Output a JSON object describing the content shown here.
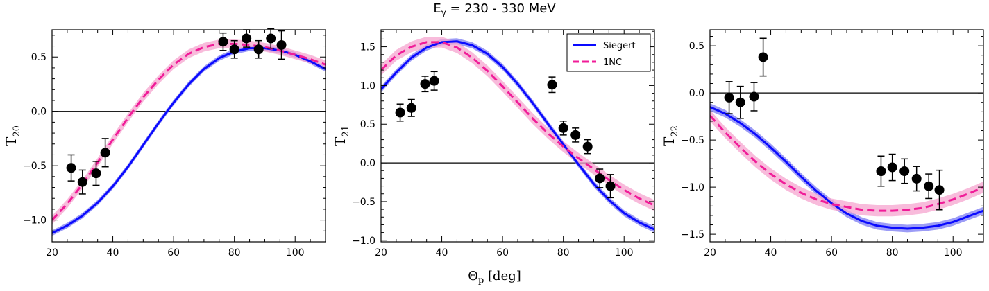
{
  "figure": {
    "suptitle_main": "E",
    "suptitle_sub": "γ",
    "suptitle_rest": " = 230 - 330 MeV",
    "xlabel_main": "Θ",
    "xlabel_sub": "p",
    "xlabel_rest": " [deg]"
  },
  "colors": {
    "siegert": "#0a0aff",
    "siegert_band": "#7b7bf3",
    "onenc": "#f01c98",
    "onenc_band": "#f6a4cf",
    "data": "#000000"
  },
  "chart_data": [
    {
      "type": "line",
      "ylabel_main": "T",
      "ylabel_sub": "20",
      "xlim": [
        20,
        110
      ],
      "ylim": [
        -1.2,
        0.75
      ],
      "xticks": [
        20,
        40,
        60,
        80,
        100
      ],
      "yticks": [
        -1.0,
        -0.5,
        0.0,
        0.5
      ],
      "xtick_labels": [
        "20",
        "40",
        "60",
        "80",
        "100"
      ],
      "ytick_labels": [
        "−1.0",
        "−0.5",
        "0.0",
        "0.5"
      ],
      "hline": 0,
      "grid": false,
      "series": [
        {
          "name": "Siegert",
          "style": "solid",
          "band": 0.025,
          "x": [
            20,
            25,
            30,
            35,
            40,
            45,
            50,
            55,
            60,
            65,
            70,
            75,
            80,
            85,
            90,
            95,
            100,
            105,
            110
          ],
          "y": [
            -1.12,
            -1.05,
            -0.96,
            -0.84,
            -0.69,
            -0.51,
            -0.31,
            -0.11,
            0.08,
            0.25,
            0.39,
            0.49,
            0.55,
            0.58,
            0.58,
            0.56,
            0.52,
            0.46,
            0.39
          ]
        },
        {
          "name": "1NC",
          "style": "dashed",
          "band": 0.04,
          "x": [
            20,
            25,
            30,
            35,
            40,
            45,
            50,
            55,
            60,
            65,
            70,
            75,
            80,
            85,
            90,
            95,
            100,
            105,
            110
          ],
          "y": [
            -1.0,
            -0.85,
            -0.67,
            -0.47,
            -0.26,
            -0.06,
            0.13,
            0.29,
            0.43,
            0.53,
            0.59,
            0.62,
            0.62,
            0.61,
            0.59,
            0.56,
            0.52,
            0.48,
            0.43
          ]
        }
      ],
      "points": {
        "x": [
          26.3,
          30,
          34.5,
          37.5,
          76.3,
          80,
          84,
          88,
          92,
          95.5
        ],
        "y": [
          -0.52,
          -0.65,
          -0.57,
          -0.38,
          0.64,
          0.57,
          0.67,
          0.57,
          0.67,
          0.61
        ],
        "err": [
          0.12,
          0.11,
          0.11,
          0.13,
          0.08,
          0.08,
          0.08,
          0.08,
          0.09,
          0.13
        ]
      }
    },
    {
      "type": "line",
      "ylabel_main": "T",
      "ylabel_sub": "21",
      "xlim": [
        20,
        110
      ],
      "ylim": [
        -1.02,
        1.72
      ],
      "xticks": [
        20,
        40,
        60,
        80,
        100
      ],
      "yticks": [
        -1.0,
        -0.5,
        0.0,
        0.5,
        1.0,
        1.5
      ],
      "xtick_labels": [
        "20",
        "40",
        "60",
        "80",
        "100"
      ],
      "ytick_labels": [
        "−1.0",
        "−0.5",
        "0.0",
        "0.5",
        "1.0",
        "1.5"
      ],
      "hline": 0,
      "grid": false,
      "legend": {
        "position": "top-right",
        "entries": [
          "Siegert",
          "1NC"
        ]
      },
      "series": [
        {
          "name": "Siegert",
          "style": "solid",
          "band": 0.04,
          "x": [
            20,
            25,
            30,
            35,
            40,
            45,
            50,
            55,
            60,
            65,
            70,
            75,
            80,
            85,
            90,
            95,
            100,
            105,
            110
          ],
          "y": [
            0.95,
            1.17,
            1.36,
            1.49,
            1.56,
            1.57,
            1.52,
            1.41,
            1.24,
            1.02,
            0.77,
            0.5,
            0.24,
            -0.02,
            -0.27,
            -0.48,
            -0.65,
            -0.77,
            -0.86
          ]
        },
        {
          "name": "1NC",
          "style": "dashed",
          "band": 0.07,
          "x": [
            20,
            25,
            30,
            35,
            40,
            45,
            50,
            55,
            60,
            65,
            70,
            75,
            80,
            85,
            90,
            95,
            100,
            105,
            110
          ],
          "y": [
            1.2,
            1.39,
            1.5,
            1.56,
            1.56,
            1.49,
            1.36,
            1.19,
            0.99,
            0.78,
            0.57,
            0.38,
            0.21,
            0.06,
            -0.08,
            -0.22,
            -0.35,
            -0.46,
            -0.55
          ]
        }
      ],
      "points": {
        "x": [
          26.3,
          30,
          34.5,
          37.5,
          76.3,
          80,
          84,
          88,
          92,
          95.5
        ],
        "y": [
          0.65,
          0.71,
          1.02,
          1.06,
          1.01,
          0.45,
          0.36,
          0.21,
          -0.2,
          -0.3
        ],
        "err": [
          0.11,
          0.11,
          0.1,
          0.12,
          0.1,
          0.09,
          0.09,
          0.09,
          0.12,
          0.15
        ]
      }
    },
    {
      "type": "line",
      "ylabel_main": "T",
      "ylabel_sub": "22",
      "xlim": [
        20,
        110
      ],
      "ylim": [
        -1.58,
        0.67
      ],
      "xticks": [
        20,
        40,
        60,
        80,
        100
      ],
      "yticks": [
        -1.5,
        -1.0,
        -0.5,
        0.0,
        0.5
      ],
      "xtick_labels": [
        "20",
        "40",
        "60",
        "80",
        "100"
      ],
      "ytick_labels": [
        "−1.5",
        "−1.0",
        "−0.5",
        "0.0",
        "0.5"
      ],
      "hline": 0,
      "grid": false,
      "series": [
        {
          "name": "Siegert",
          "style": "solid",
          "band": 0.04,
          "x": [
            20,
            25,
            30,
            35,
            40,
            45,
            50,
            55,
            60,
            65,
            70,
            75,
            80,
            85,
            90,
            95,
            100,
            105,
            110
          ],
          "y": [
            -0.15,
            -0.22,
            -0.32,
            -0.44,
            -0.58,
            -0.73,
            -0.89,
            -1.04,
            -1.17,
            -1.28,
            -1.36,
            -1.41,
            -1.43,
            -1.44,
            -1.43,
            -1.41,
            -1.37,
            -1.31,
            -1.25
          ]
        },
        {
          "name": "1NC",
          "style": "dashed",
          "band": 0.06,
          "x": [
            20,
            25,
            30,
            35,
            40,
            45,
            50,
            55,
            60,
            65,
            70,
            75,
            80,
            85,
            90,
            95,
            100,
            105,
            110
          ],
          "y": [
            -0.24,
            -0.42,
            -0.58,
            -0.73,
            -0.86,
            -0.97,
            -1.06,
            -1.13,
            -1.18,
            -1.21,
            -1.24,
            -1.25,
            -1.25,
            -1.24,
            -1.22,
            -1.18,
            -1.13,
            -1.07,
            -1.0
          ]
        }
      ],
      "points": {
        "x": [
          26.3,
          30,
          34.5,
          37.5,
          76.3,
          80,
          84,
          88,
          92,
          95.5
        ],
        "y": [
          -0.05,
          -0.1,
          -0.04,
          0.38,
          -0.83,
          -0.79,
          -0.83,
          -0.91,
          -0.99,
          -1.03
        ],
        "err": [
          0.17,
          0.17,
          0.15,
          0.2,
          0.16,
          0.14,
          0.13,
          0.13,
          0.13,
          0.21
        ]
      }
    }
  ]
}
